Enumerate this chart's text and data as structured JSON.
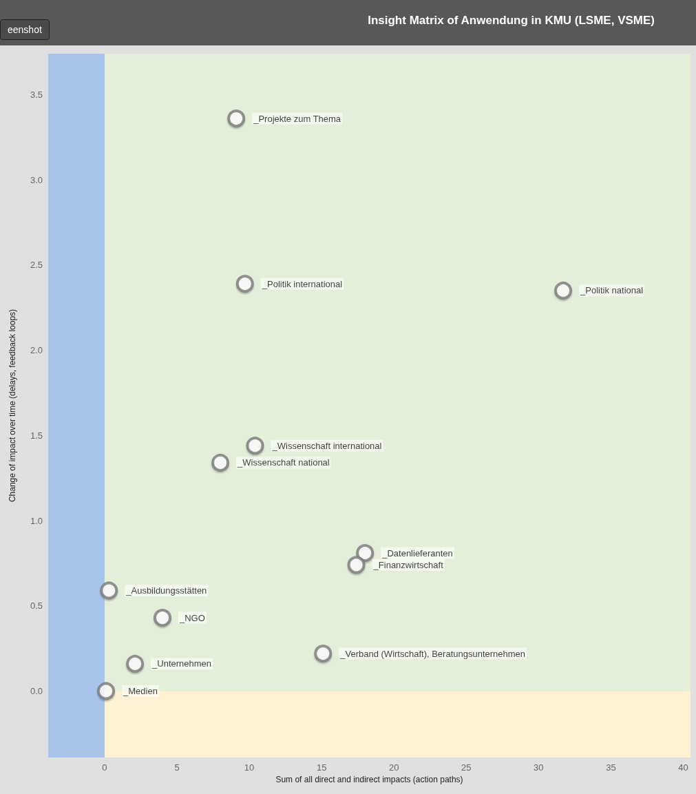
{
  "chart_data": {
    "type": "scatter",
    "title": "Insight Matrix of Anwendung in KMU (LSME, VSME)",
    "xlabel": "Sum of all direct and indirect impacts (action paths)",
    "ylabel": "Change of impact over time (delays, feedback loops)",
    "x": [
      9.1,
      9.7,
      31.7,
      10.4,
      8.0,
      18.0,
      17.4,
      0.3,
      4.0,
      15.1,
      2.1,
      0.1
    ],
    "values": [
      3.36,
      2.39,
      2.35,
      1.44,
      1.34,
      0.81,
      0.74,
      0.59,
      0.43,
      0.22,
      0.16,
      0.0
    ],
    "color": "#7a7a7a",
    "marker": "circle",
    "xlim": [
      -3.9,
      40.5
    ],
    "xticks": [
      0,
      5,
      10,
      15,
      20,
      25,
      30,
      35,
      40
    ],
    "ylim": [
      -0.39,
      3.74
    ],
    "yticks": [
      {
        "value": 0,
        "label": "0.0"
      },
      0.5,
      {
        "value": 1,
        "label": "1.0"
      },
      1.5,
      {
        "value": 2,
        "label": "2.0"
      },
      2.5,
      {
        "value": 3,
        "label": "3.0"
      },
      3.5
    ],
    "grid": false,
    "bands": [
      {
        "axis": "y",
        "from": -0.39,
        "to": 0,
        "color": "#fdf1d2"
      },
      {
        "axis": "x",
        "from": -3.9,
        "to": 0,
        "color": "#a9c4ea"
      }
    ],
    "annotations": [
      "eenshot",
      {
        "text": "_Projekte zum Thema",
        "x": 9.1,
        "y": 3.36
      },
      {
        "text": "_Politik international",
        "x": 9.7,
        "y": 2.39
      },
      {
        "text": "_Politik national",
        "x": 31.7,
        "y": 2.35
      },
      {
        "text": "_Wissenschaft international",
        "x": 10.4,
        "y": 1.44
      },
      {
        "text": "_Wissenschaft national",
        "x": 8.0,
        "y": 1.34
      },
      {
        "text": "_Datenlieferanten",
        "x": 18.0,
        "y": 0.81
      },
      {
        "text": "_Finanzwirtschaft",
        "x": 17.4,
        "y": 0.74
      },
      {
        "text": "_Ausbildungsstätten",
        "x": 0.3,
        "y": 0.59
      },
      {
        "text": "_NGO",
        "x": 4.0,
        "y": 0.43
      },
      {
        "text": "_Verband (Wirtschaft), Beratungsunternehmen",
        "x": 15.1,
        "y": 0.22
      },
      {
        "text": "_Unternehmen",
        "x": 2.1,
        "y": 0.16
      },
      {
        "text": "_Medien",
        "x": 0.1,
        "y": 0.0
      }
    ]
  }
}
